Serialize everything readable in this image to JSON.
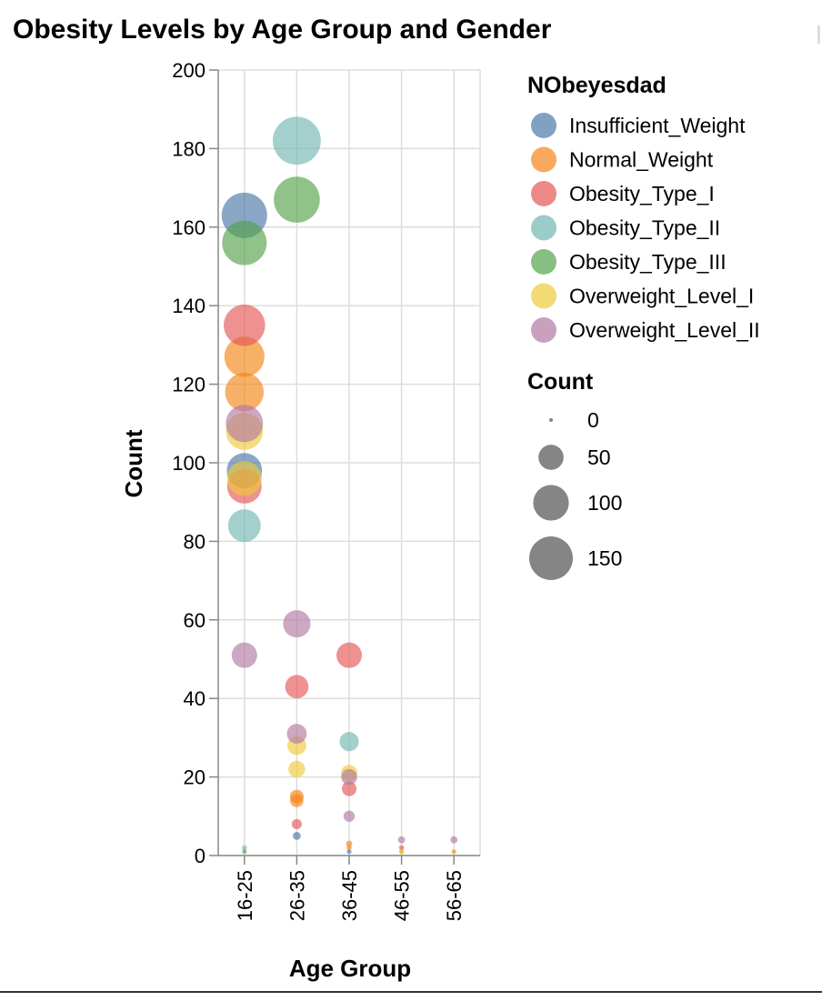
{
  "chart_data": {
    "type": "scatter",
    "title": "Obesity Levels by Age Group and Gender",
    "xlabel": "Age Group",
    "ylabel": "Count",
    "categories": [
      "16-25",
      "26-35",
      "36-45",
      "46-55",
      "56-65"
    ],
    "yticks": [
      "0",
      "20",
      "40",
      "60",
      "80",
      "100",
      "120",
      "140",
      "160",
      "180",
      "200"
    ],
    "ylim": [
      0,
      200
    ],
    "grid": true,
    "color_legend": {
      "title": "NObeyesdad",
      "placement": "right"
    },
    "size_legend": {
      "title": "Count",
      "values": [
        0,
        50,
        100,
        150
      ],
      "labels": [
        "0",
        "50",
        "100",
        "150"
      ]
    },
    "series": [
      {
        "name": "Insufficient_Weight",
        "color": "#4c78a8",
        "points": [
          [
            "16-25",
            163
          ],
          [
            "16-25",
            98
          ],
          [
            "26-35",
            5
          ],
          [
            "36-45",
            1
          ]
        ]
      },
      {
        "name": "Normal_Weight",
        "color": "#f58518",
        "points": [
          [
            "16-25",
            127
          ],
          [
            "16-25",
            118
          ],
          [
            "26-35",
            15
          ],
          [
            "26-35",
            14
          ],
          [
            "36-45",
            3
          ],
          [
            "36-45",
            2
          ],
          [
            "46-55",
            1
          ],
          [
            "56-65",
            1
          ]
        ]
      },
      {
        "name": "Obesity_Type_I",
        "color": "#e45756",
        "points": [
          [
            "16-25",
            135
          ],
          [
            "16-25",
            94
          ],
          [
            "26-35",
            43
          ],
          [
            "26-35",
            8
          ],
          [
            "36-45",
            51
          ],
          [
            "36-45",
            17
          ],
          [
            "46-55",
            2
          ]
        ]
      },
      {
        "name": "Obesity_Type_II",
        "color": "#72b7b2",
        "points": [
          [
            "16-25",
            84
          ],
          [
            "16-25",
            2
          ],
          [
            "26-35",
            182
          ],
          [
            "36-45",
            29
          ]
        ]
      },
      {
        "name": "Obesity_Type_III",
        "color": "#54a24b",
        "points": [
          [
            "16-25",
            156
          ],
          [
            "16-25",
            1
          ],
          [
            "26-35",
            167
          ]
        ]
      },
      {
        "name": "Overweight_Level_I",
        "color": "#eeca3b",
        "points": [
          [
            "16-25",
            108
          ],
          [
            "16-25",
            96
          ],
          [
            "26-35",
            28
          ],
          [
            "26-35",
            22
          ],
          [
            "36-45",
            21
          ],
          [
            "46-55",
            1
          ]
        ]
      },
      {
        "name": "Overweight_Level_II",
        "color": "#b279a2",
        "points": [
          [
            "16-25",
            110
          ],
          [
            "16-25",
            51
          ],
          [
            "26-35",
            59
          ],
          [
            "26-35",
            31
          ],
          [
            "36-45",
            20
          ],
          [
            "36-45",
            10
          ],
          [
            "46-55",
            4
          ],
          [
            "56-65",
            4
          ]
        ]
      }
    ]
  }
}
